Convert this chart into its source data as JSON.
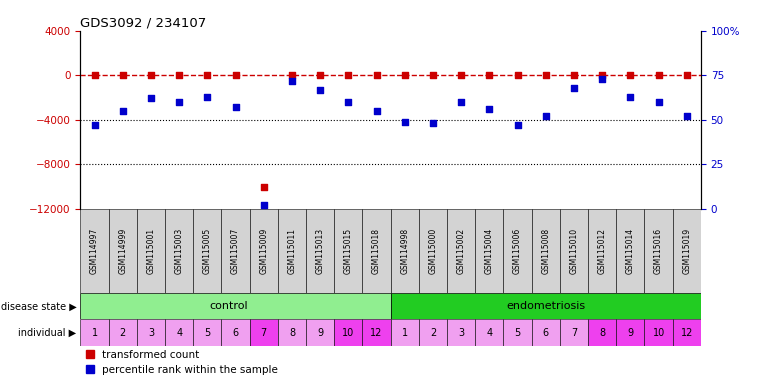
{
  "title": "GDS3092 / 234107",
  "samples": [
    "GSM114997",
    "GSM114999",
    "GSM115001",
    "GSM115003",
    "GSM115005",
    "GSM115007",
    "GSM115009",
    "GSM115011",
    "GSM115013",
    "GSM115015",
    "GSM115018",
    "GSM114998",
    "GSM115000",
    "GSM115002",
    "GSM115004",
    "GSM115006",
    "GSM115008",
    "GSM115010",
    "GSM115012",
    "GSM115014",
    "GSM115016",
    "GSM115019"
  ],
  "transformed_counts": [
    0,
    0,
    0,
    0,
    0,
    0,
    -10000,
    0,
    0,
    0,
    0,
    0,
    0,
    0,
    0,
    0,
    0,
    0,
    0,
    0,
    0,
    0
  ],
  "percentile_ranks": [
    47,
    55,
    62,
    60,
    63,
    57,
    2,
    72,
    67,
    60,
    55,
    49,
    48,
    60,
    56,
    47,
    52,
    68,
    73,
    63,
    60,
    52
  ],
  "control_individuals": [
    "1",
    "2",
    "3",
    "4",
    "5",
    "6",
    "7",
    "8",
    "9",
    "10",
    "12"
  ],
  "endometriosis_individuals": [
    "1",
    "2",
    "3",
    "4",
    "5",
    "6",
    "7",
    "8",
    "9",
    "10",
    "12"
  ],
  "indiv_colors_control": [
    "#f0a0f0",
    "#f0a0f0",
    "#f0a0f0",
    "#f0a0f0",
    "#f0a0f0",
    "#f0a0f0",
    "#ee40ee",
    "#f0a0f0",
    "#f0a0f0",
    "#ee40ee",
    "#ee40ee"
  ],
  "indiv_colors_endo": [
    "#f0a0f0",
    "#f0a0f0",
    "#f0a0f0",
    "#f0a0f0",
    "#f0a0f0",
    "#f0a0f0",
    "#f0a0f0",
    "#ee40ee",
    "#ee40ee",
    "#ee40ee",
    "#ee40ee"
  ],
  "red_color": "#cc0000",
  "blue_color": "#0000cc",
  "ylim_left": [
    -12000,
    4000
  ],
  "ylim_right": [
    0,
    100
  ],
  "yticks_left": [
    -12000,
    -8000,
    -4000,
    0,
    4000
  ],
  "yticks_right": [
    0,
    25,
    50,
    75,
    100
  ],
  "ctrl_green": "#90ee90",
  "endo_green": "#22cc22",
  "sample_bg": "#d3d3d3",
  "legend_labels": [
    "transformed count",
    "percentile rank within the sample"
  ]
}
